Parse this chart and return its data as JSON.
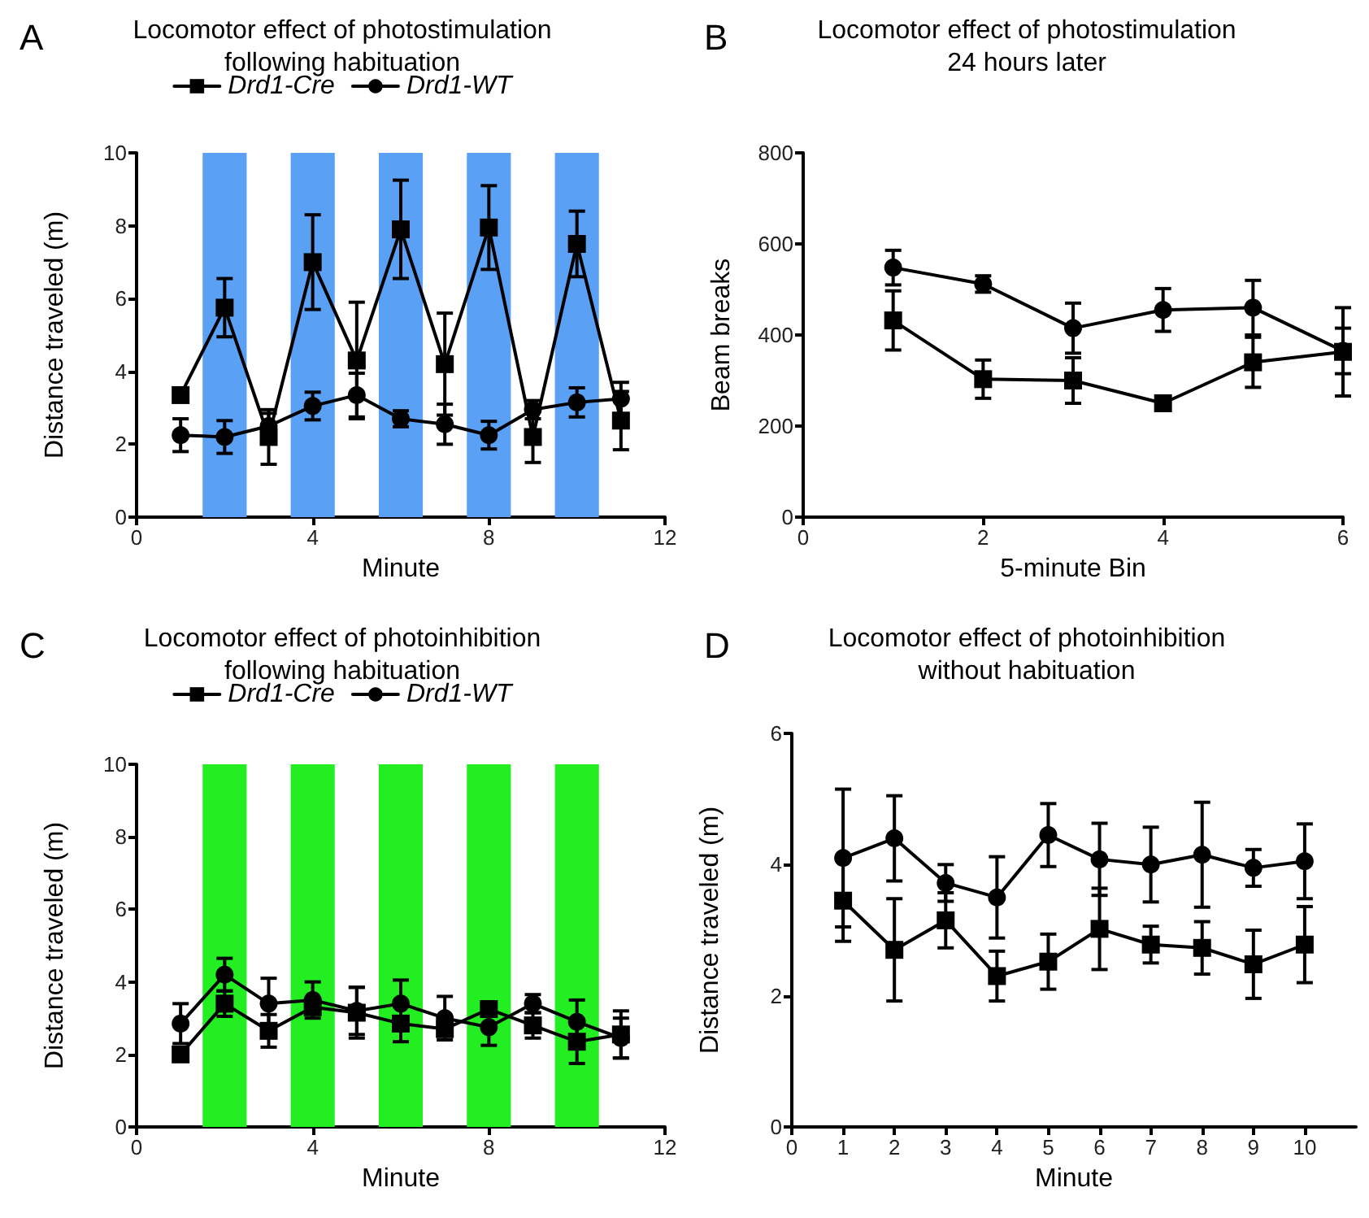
{
  "chart_data": [
    {
      "type": "line",
      "title": "Locomotor effect of photostimulation\nfollowing habituation",
      "xlabel": "Minute",
      "ylabel": "Distance traveled (m)",
      "annotations": [
        "A"
      ],
      "x": [
        1,
        2,
        3,
        4,
        5,
        6,
        7,
        8,
        9,
        10,
        11
      ],
      "xlim": [
        0,
        12
      ],
      "xticks": [
        0,
        4,
        8,
        12
      ],
      "ylim": [
        0,
        10
      ],
      "yticks": [
        0,
        2,
        4,
        6,
        8,
        10
      ],
      "legend": "top",
      "grid": false,
      "bands": [
        {
          "axis": "x",
          "from": 1.5,
          "to": 2.5,
          "color": "#5aa0f5"
        },
        {
          "axis": "x",
          "from": 3.5,
          "to": 4.5,
          "color": "#5aa0f5"
        },
        {
          "axis": "x",
          "from": 5.5,
          "to": 6.5,
          "color": "#5aa0f5"
        },
        {
          "axis": "x",
          "from": 7.5,
          "to": 8.5,
          "color": "#5aa0f5"
        },
        {
          "axis": "x",
          "from": 9.5,
          "to": 10.5,
          "color": "#5aa0f5"
        }
      ],
      "series": [
        {
          "name": "Drd1-Cre",
          "color": "#000000",
          "marker": "square",
          "values": [
            3.35,
            5.75,
            2.2,
            7.0,
            4.3,
            7.9,
            4.2,
            7.95,
            2.2,
            7.5,
            2.65
          ],
          "errors": [
            0.15,
            0.8,
            0.75,
            1.3,
            1.6,
            1.35,
            1.4,
            1.15,
            0.7,
            0.9,
            0.8
          ]
        },
        {
          "name": "Drd1-WT",
          "color": "#000000",
          "marker": "circle",
          "values": [
            2.25,
            2.2,
            2.5,
            3.05,
            3.35,
            2.7,
            2.55,
            2.25,
            2.95,
            3.15,
            3.25
          ],
          "errors": [
            0.45,
            0.45,
            0.35,
            0.38,
            0.6,
            0.22,
            0.55,
            0.38,
            0.25,
            0.4,
            0.45
          ]
        }
      ]
    },
    {
      "type": "line",
      "title": "Locomotor effect of photostimulation\n24 hours later",
      "xlabel": "5-minute Bin",
      "ylabel": "Beam breaks",
      "annotations": [
        "B"
      ],
      "x": [
        1,
        2,
        3,
        4,
        5,
        6
      ],
      "xlim": [
        0,
        6
      ],
      "xticks": [
        0,
        2,
        4,
        6
      ],
      "ylim": [
        0,
        800
      ],
      "yticks": [
        0,
        200,
        400,
        600,
        800
      ],
      "grid": false,
      "series": [
        {
          "color": "#000000",
          "marker": "circle",
          "values": [
            548,
            512,
            415,
            455,
            460,
            365
          ],
          "errors": [
            38,
            18,
            55,
            47,
            60,
            50
          ]
        },
        {
          "color": "#000000",
          "marker": "square",
          "values": [
            432,
            303,
            300,
            250,
            340,
            363
          ],
          "errors": [
            65,
            42,
            50,
            15,
            55,
            97
          ]
        }
      ]
    },
    {
      "type": "line",
      "title": "Locomotor effect of photoinhibition\nfollowing habituation",
      "xlabel": "Minute",
      "ylabel": "Distance traveled (m)",
      "annotations": [
        "C"
      ],
      "x": [
        1,
        2,
        3,
        4,
        5,
        6,
        7,
        8,
        9,
        10,
        11
      ],
      "xlim": [
        0,
        12
      ],
      "xticks": [
        0,
        4,
        8,
        12
      ],
      "ylim": [
        0,
        10
      ],
      "yticks": [
        0,
        2,
        4,
        6,
        8,
        10
      ],
      "legend": "top",
      "grid": false,
      "bands": [
        {
          "axis": "x",
          "from": 1.5,
          "to": 2.5,
          "color": "#22ee22"
        },
        {
          "axis": "x",
          "from": 3.5,
          "to": 4.5,
          "color": "#22ee22"
        },
        {
          "axis": "x",
          "from": 5.5,
          "to": 6.5,
          "color": "#22ee22"
        },
        {
          "axis": "x",
          "from": 7.5,
          "to": 8.5,
          "color": "#22ee22"
        },
        {
          "axis": "x",
          "from": 9.5,
          "to": 10.5,
          "color": "#22ee22"
        }
      ],
      "series": [
        {
          "name": "Drd1-Cre",
          "color": "#000000",
          "marker": "square",
          "values": [
            2.0,
            3.4,
            2.65,
            3.3,
            3.15,
            2.85,
            2.7,
            3.25,
            2.8,
            2.35,
            2.55
          ],
          "errors": [
            0.15,
            0.35,
            0.45,
            0.15,
            0.7,
            0.5,
            0.2,
            0.2,
            0.35,
            0.6,
            0.65
          ]
        },
        {
          "name": "Drd1-WT",
          "color": "#000000",
          "marker": "circle",
          "values": [
            2.85,
            4.2,
            3.4,
            3.5,
            3.2,
            3.4,
            3.0,
            2.75,
            3.4,
            2.9,
            2.45
          ],
          "errors": [
            0.55,
            0.45,
            0.7,
            0.5,
            0.65,
            0.65,
            0.6,
            0.5,
            0.25,
            0.6,
            0.55
          ]
        }
      ]
    },
    {
      "type": "line",
      "title": "Locomotor effect of photoinhibition\nwithout habituation",
      "xlabel": "Minute",
      "ylabel": "Distance traveled (m)",
      "annotations": [
        "D"
      ],
      "x": [
        1,
        2,
        3,
        4,
        5,
        6,
        7,
        8,
        9,
        10
      ],
      "xlim": [
        0,
        11
      ],
      "xticks": [
        0,
        1,
        2,
        3,
        4,
        5,
        6,
        7,
        8,
        9,
        10
      ],
      "ylim": [
        0,
        6
      ],
      "yticks": [
        0,
        2,
        4,
        6
      ],
      "grid": false,
      "series": [
        {
          "color": "#000000",
          "marker": "circle",
          "values": [
            4.1,
            4.4,
            3.72,
            3.5,
            4.45,
            4.08,
            4.0,
            4.15,
            3.95,
            4.05
          ],
          "errors": [
            1.05,
            0.65,
            0.28,
            0.62,
            0.48,
            0.55,
            0.57,
            0.8,
            0.28,
            0.57
          ]
        },
        {
          "color": "#000000",
          "marker": "square",
          "values": [
            3.45,
            2.7,
            3.15,
            2.3,
            2.52,
            3.02,
            2.78,
            2.73,
            2.48,
            2.78
          ],
          "errors": [
            0.62,
            0.78,
            0.42,
            0.38,
            0.42,
            0.62,
            0.28,
            0.4,
            0.52,
            0.58
          ]
        }
      ]
    }
  ]
}
